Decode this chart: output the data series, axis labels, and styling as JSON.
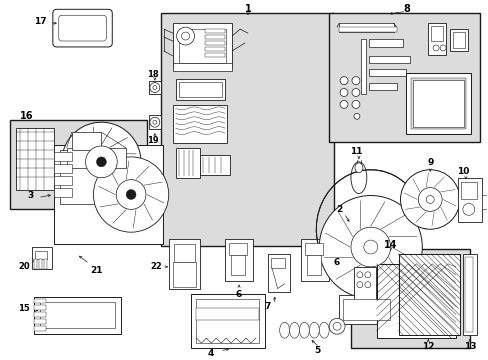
{
  "bg_color": "#ffffff",
  "line_color": "#1a1a1a",
  "shade_color": "#dcdcdc",
  "fig_width": 4.89,
  "fig_height": 3.6,
  "dpi": 100
}
